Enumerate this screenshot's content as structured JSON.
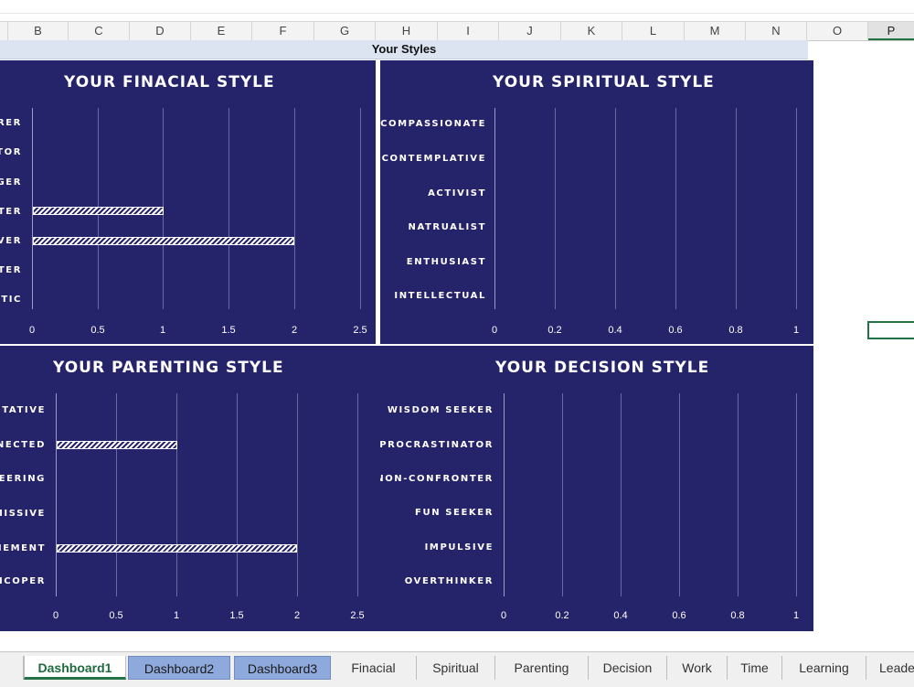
{
  "columns": [
    "B",
    "C",
    "D",
    "E",
    "F",
    "G",
    "H",
    "I",
    "J",
    "K",
    "L",
    "M",
    "N",
    "O",
    "P"
  ],
  "banner": "Your Styles",
  "colors": {
    "panel": "#25246a",
    "band": "#dce4f1",
    "accent": "#217346",
    "tab_blue": "#8ea9db"
  },
  "charts": {
    "financial": {
      "title": "YOUR FINACIAL STYLE",
      "categories": [
        "RER",
        "TOR",
        "GER",
        "TER",
        "VER",
        "TER",
        "TIC"
      ],
      "values": [
        0,
        0,
        0,
        1,
        2,
        0,
        0
      ],
      "ticks": [
        "0",
        "0.5",
        "1",
        "1.5",
        "2",
        "2.5"
      ],
      "max": 2.5
    },
    "spiritual": {
      "title": "YOUR SPIRITUAL STYLE",
      "categories": [
        "COMPASSIONATE",
        "CONTEMPLATIVE",
        "ACTIVIST",
        "NATRUALIST",
        "ENTHUSIAST",
        "INTELLECTUAL"
      ],
      "values": [
        0,
        0,
        0,
        0,
        0,
        0
      ],
      "ticks": [
        "0",
        "0.2",
        "0.4",
        "0.6",
        "0.8",
        "1"
      ],
      "max": 1
    },
    "parenting": {
      "title": "YOUR PARENTING STYLE",
      "categories": [
        "ITATIVE",
        "NECTED",
        "EERING",
        "MISSIVE",
        "HEMENT",
        "LICOPER"
      ],
      "values": [
        0,
        1,
        0,
        0,
        2,
        0
      ],
      "ticks": [
        "0",
        "0.5",
        "1",
        "1.5",
        "2",
        "2.5"
      ],
      "max": 2.5
    },
    "decision": {
      "title": "YOUR DECISION STYLE",
      "categories": [
        "WISDOM SEEKER",
        "PROCRASTINATOR",
        "NON-CONFRONTER",
        "FUN SEEKER",
        "IMPULSIVE",
        "OVERTHINKER"
      ],
      "values": [
        0,
        0,
        0,
        0,
        0,
        0
      ],
      "ticks": [
        "0",
        "0.2",
        "0.4",
        "0.6",
        "0.8",
        "1"
      ],
      "max": 1
    }
  },
  "chart_data": [
    {
      "type": "bar",
      "title": "YOUR FINACIAL STYLE",
      "categories": [
        "RER",
        "TOR",
        "GER",
        "TER",
        "VER",
        "TER",
        "TIC"
      ],
      "values": [
        0,
        0,
        0,
        1,
        2,
        0,
        0
      ],
      "xlim": [
        0,
        2.5
      ]
    },
    {
      "type": "bar",
      "title": "YOUR SPIRITUAL STYLE",
      "categories": [
        "COMPASSIONATE",
        "CONTEMPLATIVE",
        "ACTIVIST",
        "NATRUALIST",
        "ENTHUSIAST",
        "INTELLECTUAL"
      ],
      "values": [
        0,
        0,
        0,
        0,
        0,
        0
      ],
      "xlim": [
        0,
        1
      ]
    },
    {
      "type": "bar",
      "title": "YOUR PARENTING STYLE",
      "categories": [
        "ITATIVE",
        "NECTED",
        "EERING",
        "MISSIVE",
        "HEMENT",
        "LICOPER"
      ],
      "values": [
        0,
        1,
        0,
        0,
        2,
        0
      ],
      "xlim": [
        0,
        2.5
      ]
    },
    {
      "type": "bar",
      "title": "YOUR DECISION STYLE",
      "categories": [
        "WISDOM SEEKER",
        "PROCRASTINATOR",
        "NON-CONFRONTER",
        "FUN SEEKER",
        "IMPULSIVE",
        "OVERTHINKER"
      ],
      "values": [
        0,
        0,
        0,
        0,
        0,
        0
      ],
      "xlim": [
        0,
        1
      ]
    }
  ],
  "sheet_tabs": [
    "Dashboard1",
    "Dashboard2",
    "Dashboard3",
    "Finacial",
    "Spiritual",
    "Parenting",
    "Decision",
    "Work",
    "Time",
    "Learning",
    "Leade"
  ]
}
